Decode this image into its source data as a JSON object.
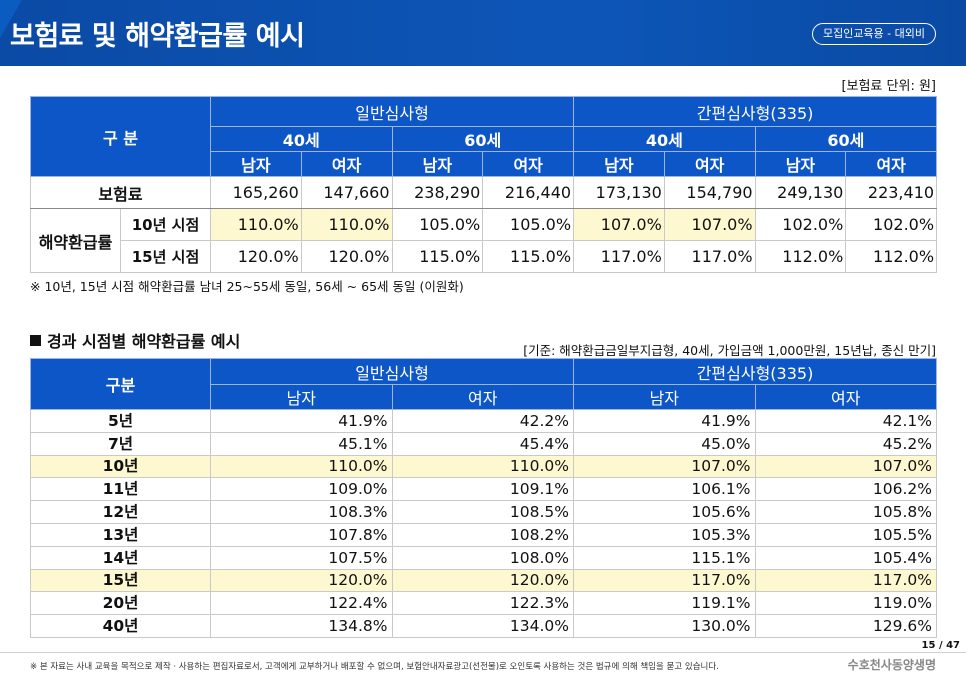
{
  "header": {
    "title": "보험료 및 해약환급률 예시",
    "badge": "모집인교육용 - 대외비"
  },
  "unit_note": "[보험료 단위: 원]",
  "table1": {
    "corner": "구 분",
    "groups": [
      "일반심사형",
      "간편심사형(335)"
    ],
    "ages": [
      "40세",
      "60세",
      "40세",
      "60세"
    ],
    "genders": [
      "남자",
      "여자",
      "남자",
      "여자",
      "남자",
      "여자",
      "남자",
      "여자"
    ],
    "premium_label": "보험료",
    "premiums": [
      "165,260",
      "147,660",
      "238,290",
      "216,440",
      "173,130",
      "154,790",
      "249,130",
      "223,410"
    ],
    "refund_label": "해약환급률",
    "refund_rows": [
      {
        "label": "10년 시점",
        "values": [
          "110.0%",
          "110.0%",
          "105.0%",
          "105.0%",
          "107.0%",
          "107.0%",
          "102.0%",
          "102.0%"
        ]
      },
      {
        "label": "15년 시점",
        "values": [
          "120.0%",
          "120.0%",
          "115.0%",
          "115.0%",
          "117.0%",
          "117.0%",
          "112.0%",
          "112.0%"
        ]
      }
    ]
  },
  "footnote1": "※ 10년, 15년 시점 해약환급률 남녀 25~55세 동일, 56세 ~ 65세 동일 (이원화)",
  "section": {
    "title": "경과 시점별 해약환급률 예시",
    "criteria": "[기준: 해약환급금일부지급형, 40세,  가입금액 1,000만원, 15년납, 종신 만기]"
  },
  "table2": {
    "corner": "구분",
    "groups": [
      "일반심사형",
      "간편심사형(335)"
    ],
    "genders": [
      "남자",
      "여자",
      "남자",
      "여자"
    ],
    "rows": [
      {
        "year": "5년",
        "values": [
          "41.9%",
          "42.2%",
          "41.9%",
          "42.1%"
        ]
      },
      {
        "year": "7년",
        "values": [
          "45.1%",
          "45.4%",
          "45.0%",
          "45.2%"
        ]
      },
      {
        "year": "10년",
        "values": [
          "110.0%",
          "110.0%",
          "107.0%",
          "107.0%"
        ]
      },
      {
        "year": "11년",
        "values": [
          "109.0%",
          "109.1%",
          "106.1%",
          "106.2%"
        ]
      },
      {
        "year": "12년",
        "values": [
          "108.3%",
          "108.5%",
          "105.6%",
          "105.8%"
        ]
      },
      {
        "year": "13년",
        "values": [
          "107.8%",
          "108.2%",
          "105.3%",
          "105.5%"
        ]
      },
      {
        "year": "14년",
        "values": [
          "107.5%",
          "108.0%",
          "115.1%",
          "105.4%"
        ]
      },
      {
        "year": "15년",
        "values": [
          "120.0%",
          "120.0%",
          "117.0%",
          "117.0%"
        ]
      },
      {
        "year": "20년",
        "values": [
          "122.4%",
          "122.3%",
          "119.1%",
          "119.0%"
        ]
      },
      {
        "year": "40년",
        "values": [
          "134.8%",
          "134.0%",
          "130.0%",
          "129.6%"
        ]
      }
    ]
  },
  "footer": {
    "page": "15 / 47",
    "disclaimer": "※ 본 자료는 사내 교육을 목적으로 제작 · 사용하는 편집자료로서, 고객에게 교부하거나 배포할 수 없으며, 보험안내자료광고(선전물)로 오인토록 사용하는 것은 법규에 의해 책임을 묻고 있습니다.",
    "company": "수호천사동양생명"
  },
  "colors": {
    "header_blue": "#0b4aa5",
    "table_header_blue": "#0d56c8",
    "highlight_yellow": "#fdf8cf"
  }
}
